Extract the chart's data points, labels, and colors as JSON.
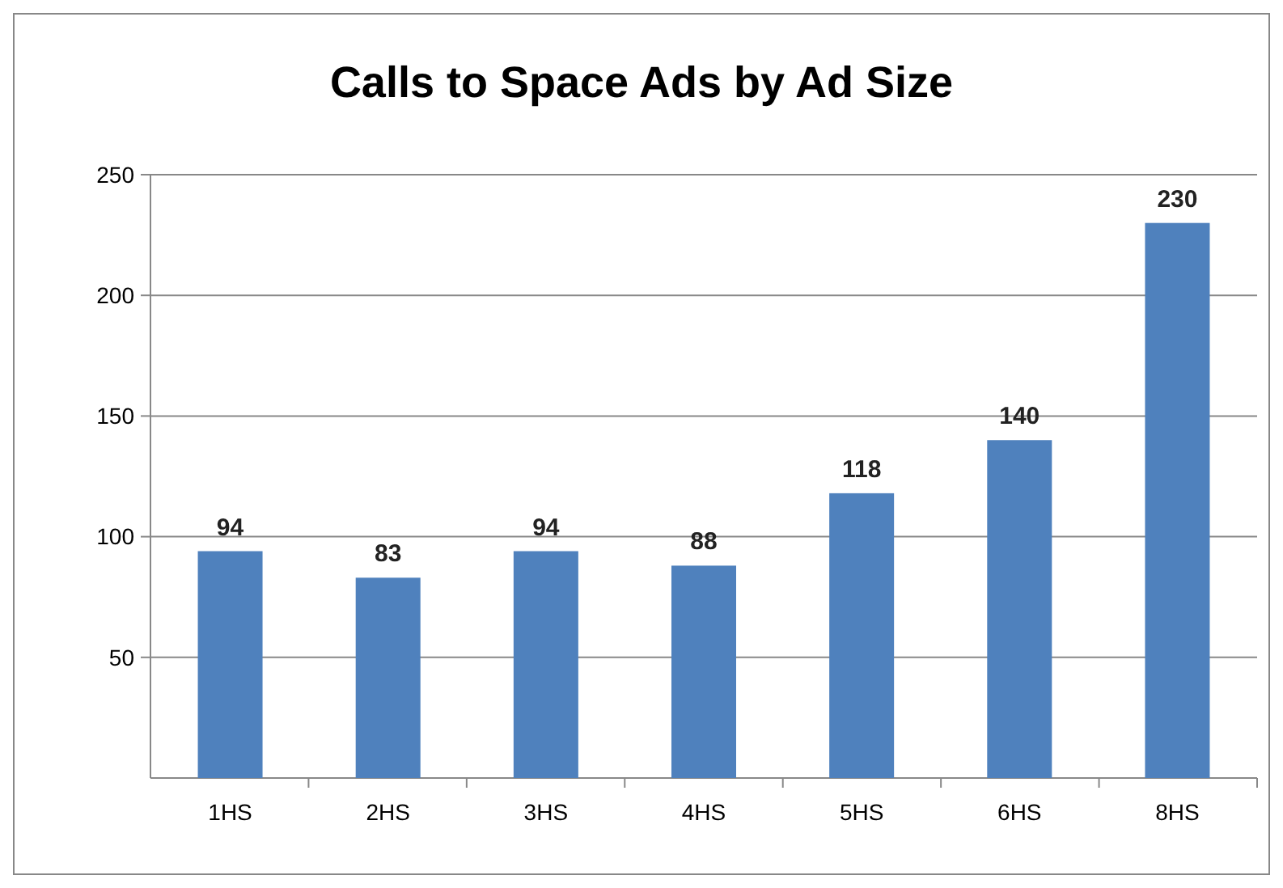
{
  "chart_data": {
    "type": "bar",
    "title": "Calls to Space Ads by Ad Size",
    "categories": [
      "1HS",
      "2HS",
      "3HS",
      "4HS",
      "5HS",
      "6HS",
      "8HS"
    ],
    "values": [
      94,
      83,
      94,
      88,
      118,
      140,
      230
    ],
    "color": "#4f81bd",
    "ylim": [
      0,
      250
    ],
    "yticks": [
      50,
      100,
      150,
      200,
      250
    ],
    "grid": "y",
    "data_labels": true
  }
}
